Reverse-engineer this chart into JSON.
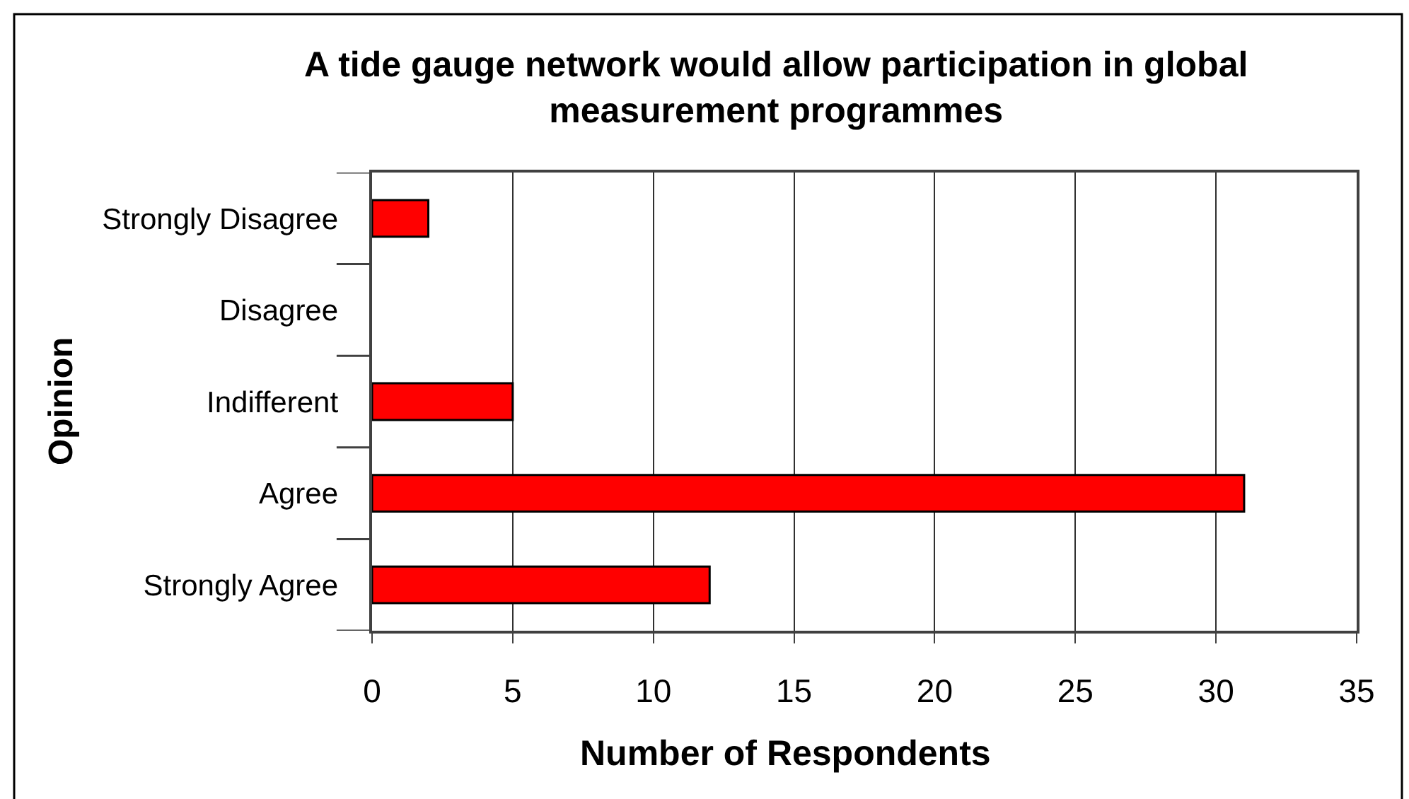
{
  "chart_data": {
    "type": "bar",
    "orientation": "horizontal",
    "title": "A tide gauge network would allow participation in global measurement programmes",
    "xlabel": "Number of Respondents",
    "ylabel": "Opinion",
    "categories": [
      "Strongly Disagree",
      "Disagree",
      "Indifferent",
      "Agree",
      "Strongly Agree"
    ],
    "values": [
      2,
      0,
      5,
      31,
      12
    ],
    "color": "#ff0000",
    "xlim": [
      0,
      35
    ],
    "xticks": [
      0,
      5,
      10,
      15,
      20,
      25,
      30,
      35
    ],
    "grid": "x"
  }
}
